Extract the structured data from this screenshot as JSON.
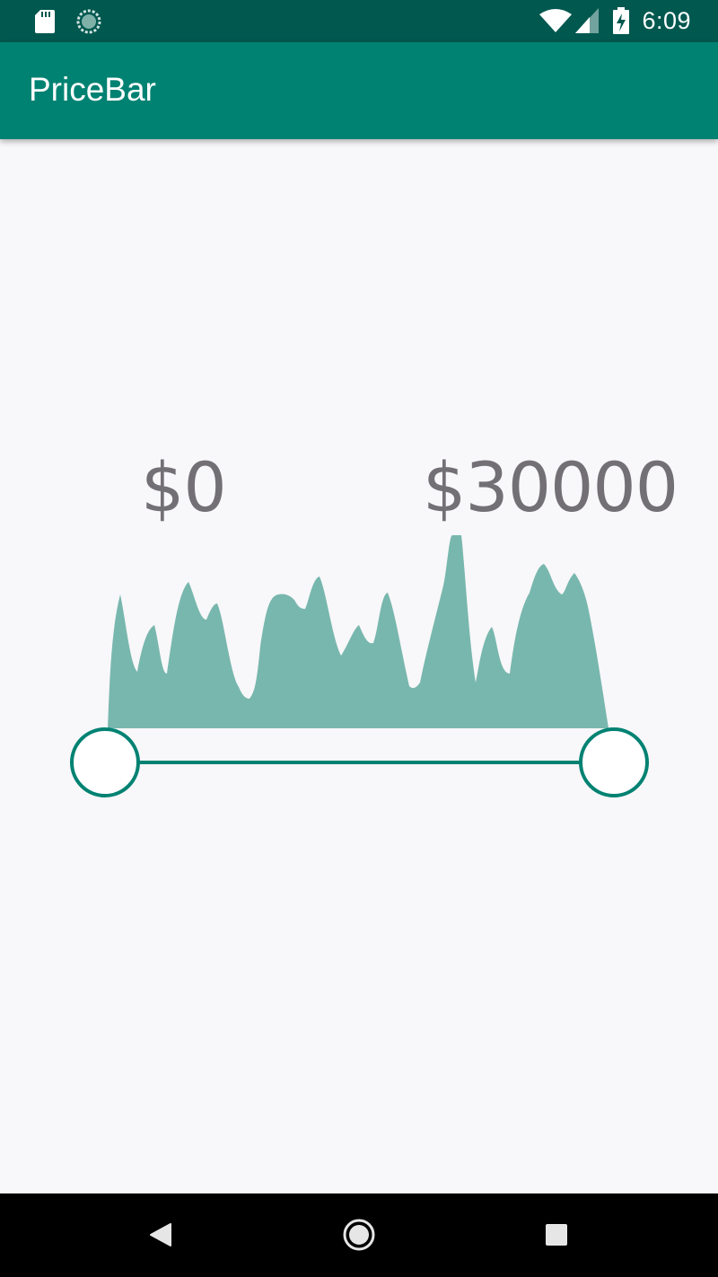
{
  "status_bar": {
    "time": "6:09",
    "icons": [
      "sd-card-icon",
      "sync-icon",
      "wifi-icon",
      "signal-icon",
      "battery-charging-icon"
    ]
  },
  "app_bar": {
    "title": "PriceBar"
  },
  "price_range": {
    "min_label": "$0",
    "max_label": "$30000",
    "selected_min_fraction": 0.0,
    "selected_max_fraction": 1.0
  },
  "histogram": {
    "fill_color": "#78b7ae",
    "track_color": "#008272",
    "thumb_fill": "#ffffff",
    "thumb_border": "#008272",
    "relative_heights": [
      0.0,
      0.6,
      0.23,
      0.36,
      0.22,
      0.58,
      0.4,
      0.47,
      0.12,
      0.3,
      0.56,
      0.45,
      0.6,
      0.43,
      0.6,
      0.26,
      0.4,
      0.35,
      0.53,
      0.18,
      0.55,
      0.36,
      1.0,
      0.12,
      0.47,
      0.22,
      0.6,
      0.76,
      0.6,
      0.53,
      0.0
    ],
    "segment_offsets": [
      0.0,
      0.025,
      0.06,
      0.09,
      0.12,
      0.16,
      0.2,
      0.22,
      0.28,
      0.33,
      0.36,
      0.4,
      0.42,
      0.47,
      0.5,
      0.52,
      0.54,
      0.56,
      0.57,
      0.61,
      0.62,
      0.68,
      0.7,
      0.74,
      0.76,
      0.81,
      0.85,
      0.87,
      0.92,
      0.93,
      1.0
    ]
  },
  "nav_bar": {
    "buttons": [
      "back",
      "home",
      "recents"
    ]
  }
}
